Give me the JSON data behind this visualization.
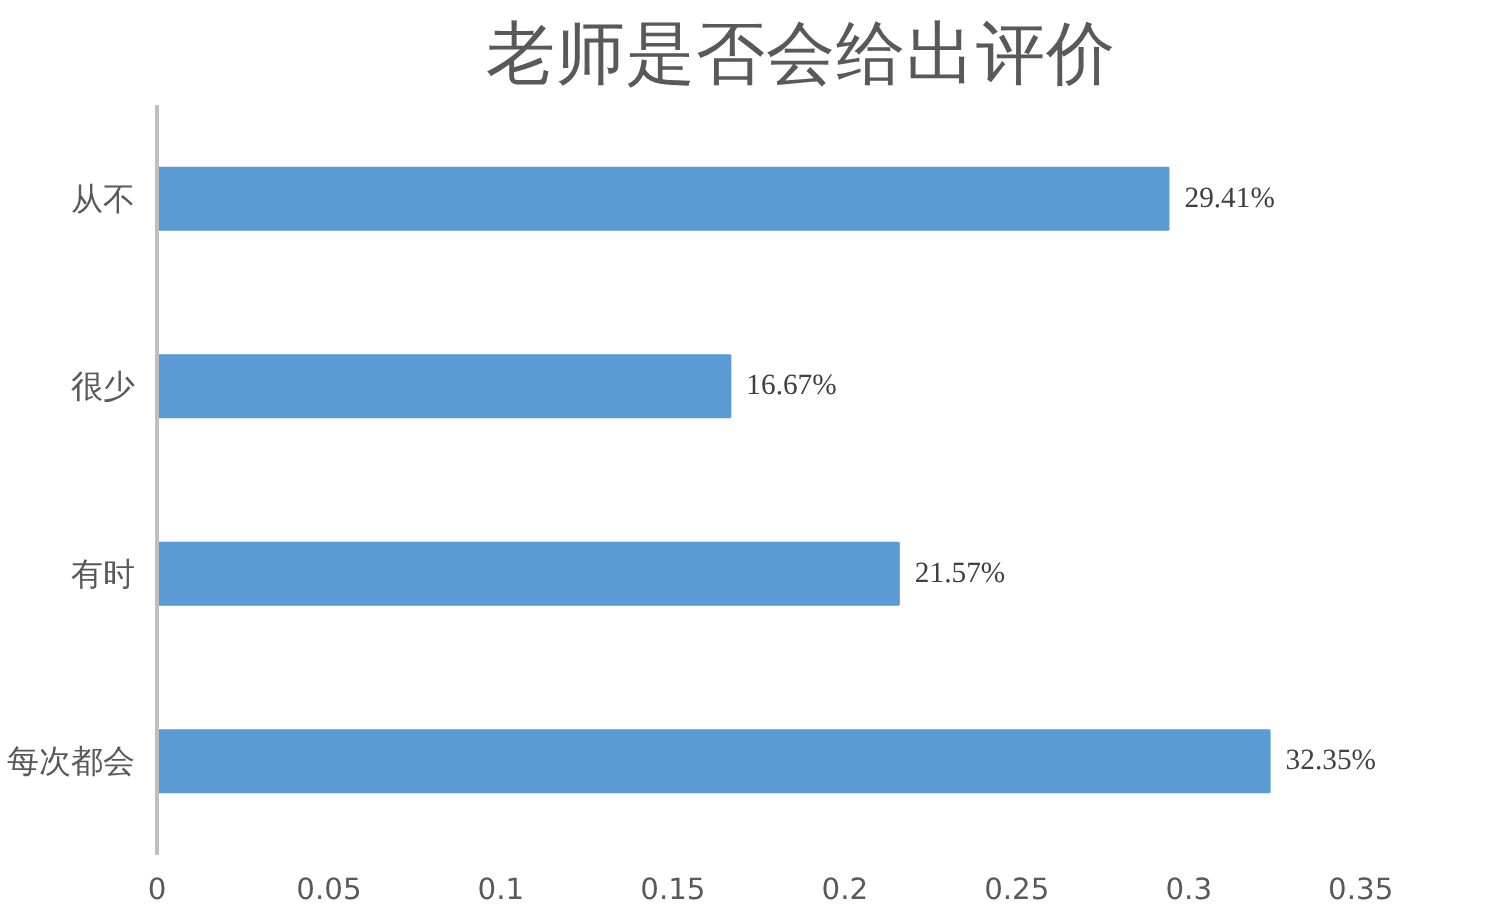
{
  "chart_data": {
    "type": "bar",
    "orientation": "horizontal",
    "title": "老师是否会给出评价",
    "categories": [
      "从不",
      "很少",
      "有时",
      "每次都会"
    ],
    "values": [
      0.2941,
      0.1667,
      0.2157,
      0.3235
    ],
    "value_labels": [
      "29.41%",
      "16.67%",
      "21.57%",
      "32.35%"
    ],
    "color": "#5b9bd5",
    "xlim": [
      0,
      0.35
    ],
    "xticks": [
      0,
      0.05,
      0.1,
      0.15,
      0.2,
      0.25,
      0.3,
      0.35
    ],
    "grid": false
  }
}
